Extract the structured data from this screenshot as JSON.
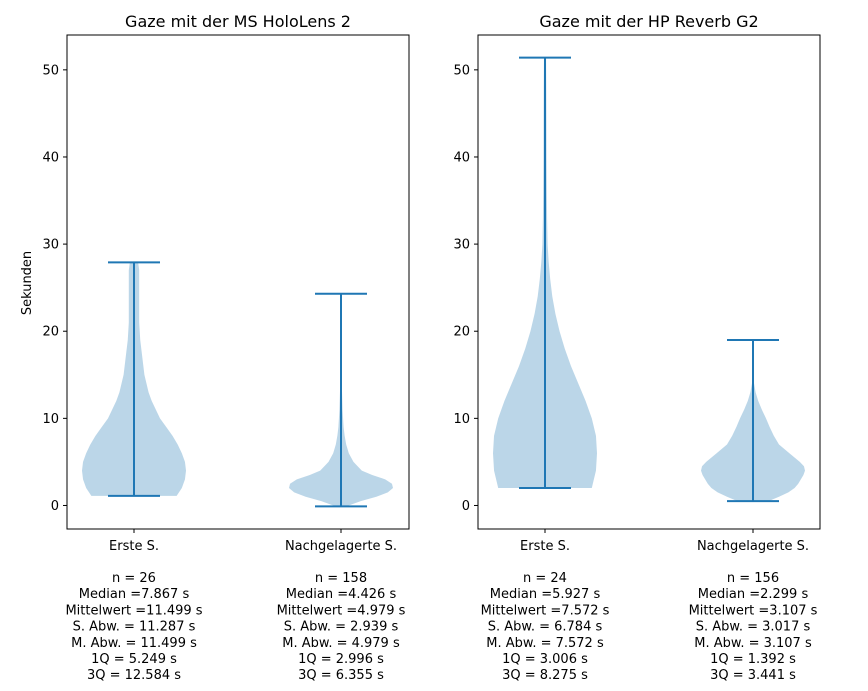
{
  "chart_data": {
    "type": "violin",
    "ylabel": "Sekunden",
    "grid": false,
    "colors": {
      "body": "#1f77b4",
      "body_opacity": 0.3,
      "lines": "#1f77b4"
    },
    "ylim": [
      -2.7,
      54
    ],
    "yticks": [
      "0",
      "10",
      "20",
      "30",
      "40",
      "50"
    ],
    "panels": [
      {
        "title": "Gaze mit der MS HoloLens 2",
        "violins": [
          {
            "label": "Erste S.",
            "min": 1.1,
            "max": 27.9,
            "profile": [
              [
                1.1,
                0.82
              ],
              [
                2.0,
                0.92
              ],
              [
                3.0,
                0.98
              ],
              [
                4.0,
                1.0
              ],
              [
                5.0,
                0.98
              ],
              [
                6.0,
                0.92
              ],
              [
                7.0,
                0.84
              ],
              [
                8.0,
                0.74
              ],
              [
                9.0,
                0.62
              ],
              [
                10.0,
                0.5
              ],
              [
                11.0,
                0.42
              ],
              [
                12.0,
                0.34
              ],
              [
                13.0,
                0.28
              ],
              [
                15.0,
                0.2
              ],
              [
                17.0,
                0.16
              ],
              [
                19.0,
                0.12
              ],
              [
                21.0,
                0.1
              ],
              [
                23.0,
                0.1
              ],
              [
                25.0,
                0.1
              ],
              [
                27.0,
                0.1
              ],
              [
                27.9,
                0.08
              ]
            ],
            "stats": [
              "n = 26",
              "Median =7.867 s",
              "Mittelwert =11.499 s",
              "S. Abw. = 11.287 s",
              "M. Abw. = 11.499 s",
              "1Q = 5.249 s",
              "3Q = 12.584 s"
            ]
          },
          {
            "label": "Nachgelagerte S.",
            "min": -0.1,
            "max": 24.3,
            "profile": [
              [
                -0.1,
                0.1
              ],
              [
                0.5,
                0.38
              ],
              [
                1.0,
                0.68
              ],
              [
                1.5,
                0.9
              ],
              [
                2.0,
                1.0
              ],
              [
                2.5,
                0.98
              ],
              [
                3.0,
                0.85
              ],
              [
                3.5,
                0.6
              ],
              [
                4.0,
                0.4
              ],
              [
                5.0,
                0.24
              ],
              [
                6.0,
                0.15
              ],
              [
                7.0,
                0.1
              ],
              [
                8.0,
                0.07
              ],
              [
                9.0,
                0.05
              ],
              [
                10.0,
                0.04
              ],
              [
                11.0,
                0.03
              ],
              [
                12.0,
                0.025
              ],
              [
                13.0,
                0.02
              ],
              [
                14.0,
                0.012
              ],
              [
                15.0,
                0.008
              ],
              [
                17.0,
                0.004
              ],
              [
                20.0,
                0.002
              ],
              [
                24.3,
                0.001
              ]
            ],
            "stats": [
              "n = 158",
              "Median =4.426 s",
              "Mittelwert =4.979 s",
              "S. Abw. = 2.939 s",
              "M. Abw. = 4.979 s",
              "1Q = 2.996 s",
              "3Q = 6.355 s"
            ]
          }
        ]
      },
      {
        "title": "Gaze mit der HP Reverb G2",
        "violins": [
          {
            "label": "Erste S.",
            "min": 2.0,
            "max": 51.4,
            "profile": [
              [
                2.0,
                0.9
              ],
              [
                4.0,
                0.98
              ],
              [
                6.0,
                1.0
              ],
              [
                8.0,
                0.98
              ],
              [
                10.0,
                0.9
              ],
              [
                12.0,
                0.78
              ],
              [
                14.0,
                0.64
              ],
              [
                16.0,
                0.5
              ],
              [
                18.0,
                0.38
              ],
              [
                20.0,
                0.28
              ],
              [
                22.0,
                0.2
              ],
              [
                24.0,
                0.14
              ],
              [
                26.0,
                0.1
              ],
              [
                28.0,
                0.07
              ],
              [
                30.0,
                0.05
              ],
              [
                33.0,
                0.04
              ],
              [
                36.0,
                0.035
              ],
              [
                40.0,
                0.03
              ],
              [
                44.0,
                0.028
              ],
              [
                48.0,
                0.025
              ],
              [
                51.4,
                0.02
              ]
            ],
            "stats": [
              "n = 24",
              "Median =5.927 s",
              "Mittelwert =7.572 s",
              "S. Abw. = 6.784 s",
              "M. Abw. = 7.572 s",
              "1Q = 3.006 s",
              "3Q = 8.275 s"
            ]
          },
          {
            "label": "Nachgelagerte S.",
            "min": 0.5,
            "max": 19.0,
            "profile": [
              [
                0.5,
                0.3
              ],
              [
                1.0,
                0.5
              ],
              [
                1.5,
                0.68
              ],
              [
                2.0,
                0.8
              ],
              [
                2.5,
                0.87
              ],
              [
                3.0,
                0.92
              ],
              [
                3.5,
                0.97
              ],
              [
                4.0,
                1.0
              ],
              [
                4.5,
                0.98
              ],
              [
                5.0,
                0.9
              ],
              [
                6.0,
                0.7
              ],
              [
                7.0,
                0.5
              ],
              [
                8.0,
                0.4
              ],
              [
                9.0,
                0.32
              ],
              [
                10.0,
                0.25
              ],
              [
                11.0,
                0.17
              ],
              [
                12.0,
                0.1
              ],
              [
                13.0,
                0.05
              ],
              [
                14.0,
                0.02
              ],
              [
                15.0,
                0.01
              ],
              [
                19.0,
                0.003
              ]
            ],
            "stats": [
              "n = 156",
              "Median =2.299 s",
              "Mittelwert =3.107 s",
              "S. Abw. = 3.017 s",
              "M. Abw. = 3.107 s",
              "1Q = 1.392 s",
              "3Q = 3.441 s"
            ]
          }
        ]
      }
    ]
  }
}
